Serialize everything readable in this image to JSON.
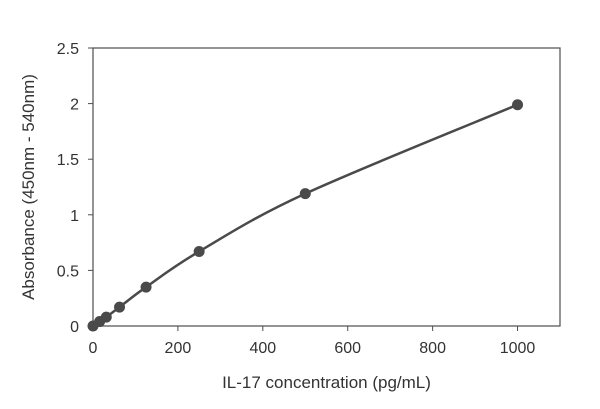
{
  "chart_data": {
    "type": "scatter",
    "title": "",
    "xlabel": "IL-17 concentration (pg/mL)",
    "ylabel": "Absorbance (450nm - 540nm)",
    "xlim": [
      0,
      1100
    ],
    "ylim": [
      0,
      2.5
    ],
    "x_ticks": [
      0,
      200,
      400,
      600,
      800,
      1000
    ],
    "y_ticks": [
      0,
      0.5,
      1,
      1.5,
      2,
      2.5
    ],
    "x_tick_labels": [
      "0",
      "200",
      "400",
      "600",
      "800",
      "1000"
    ],
    "y_tick_labels": [
      "0",
      "0.5",
      "1",
      "1.5",
      "2",
      "2.5"
    ],
    "grid": false,
    "legend": "none",
    "series": [
      {
        "color": "#4a4a4a",
        "marker": "circle",
        "trendline": "smooth",
        "x": [
          0,
          15.6,
          31.25,
          62.5,
          125,
          250,
          500,
          1000
        ],
        "y": [
          0.0,
          0.04,
          0.08,
          0.17,
          0.35,
          0.67,
          1.19,
          1.99
        ]
      }
    ]
  }
}
